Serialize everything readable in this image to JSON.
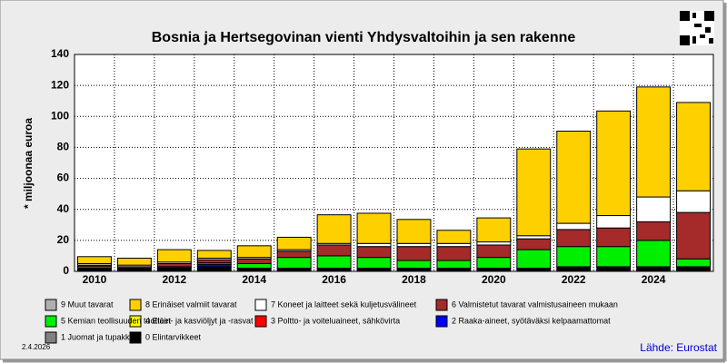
{
  "chart_data": {
    "type": "bar",
    "stacked": true,
    "title": "Bosnia ja Hertsegovinan vienti Yhdysvaltoihin ja sen rakenne",
    "y_label": "* miljoonaa euroa",
    "date": "2.4.2026",
    "source": "Lähde: Eurostat",
    "categories": [
      "2010",
      null,
      "2012",
      null,
      "2014",
      null,
      "2016",
      null,
      "2018",
      null,
      "2020",
      null,
      "2022",
      null,
      "2024",
      null
    ],
    "ylim": [
      0,
      140
    ],
    "yticks": [
      0,
      20,
      40,
      60,
      80,
      100,
      120,
      140
    ],
    "grid": true,
    "series": [
      {
        "name": "0 Elintarvikkeet",
        "color": "#000000",
        "values": [
          2,
          2,
          2,
          3,
          2,
          2,
          2,
          2,
          2,
          2,
          2,
          2,
          3,
          3,
          3,
          3
        ]
      },
      {
        "name": "1 Juomat ja tupakka",
        "color": "#808080",
        "values": [
          0,
          0,
          0,
          0,
          0,
          0,
          0,
          0,
          0,
          0,
          0,
          0,
          0,
          0,
          0,
          0
        ]
      },
      {
        "name": "2 Raaka-aineet, syötäväksi kelpaamattomat",
        "color": "#0000ff",
        "values": [
          0,
          0,
          1,
          1.5,
          0,
          0,
          0,
          0,
          0,
          0,
          0,
          0,
          0,
          0,
          0,
          0
        ]
      },
      {
        "name": "3 Poltto- ja voiteluaineet, sähkövirta",
        "color": "#ff0000",
        "values": [
          0,
          0,
          0,
          0,
          0,
          0,
          0,
          0,
          0,
          0,
          0,
          0,
          0,
          0,
          0,
          0
        ]
      },
      {
        "name": "4 Eläin- ja kasviöljyt ja -rasvat",
        "color": "#ffff00",
        "values": [
          0,
          0,
          0,
          0,
          0,
          0,
          0,
          0,
          0,
          0,
          0,
          0,
          0,
          0,
          0,
          0
        ]
      },
      {
        "name": "5 Kemian teollisuuden tuotteet",
        "color": "#00ee00",
        "values": [
          1,
          0,
          0,
          1,
          3,
          7,
          8,
          7,
          5,
          5,
          7,
          12,
          13,
          13,
          17,
          5
        ]
      },
      {
        "name": "6 Valmistetut tavarat valmistusaineen mukaan",
        "color": "#a52a2a",
        "values": [
          1,
          1,
          2,
          2,
          3,
          4,
          7,
          7,
          9,
          9,
          8,
          7,
          11,
          12,
          12,
          30
        ]
      },
      {
        "name": "7 Koneet ja laitteet sekä kuljetusvälineet",
        "color": "#ffffff",
        "values": [
          1,
          1,
          1,
          1,
          1,
          1,
          1,
          2,
          2,
          2,
          2,
          2,
          4,
          8,
          16,
          14
        ]
      },
      {
        "name": "8 Erinäiset valmiit tavarat",
        "color": "#ffd000",
        "values": [
          4.5,
          4.5,
          8,
          5,
          7.5,
          8,
          18.5,
          19.5,
          15.5,
          8.5,
          15.5,
          56,
          59.5,
          67.5,
          71,
          57
        ]
      },
      {
        "name": "9 Muut tavarat",
        "color": "#b0b0b0",
        "values": [
          0,
          0,
          0,
          0,
          0,
          0,
          0,
          0,
          0,
          0,
          0,
          0,
          0,
          0,
          0,
          0
        ]
      }
    ]
  }
}
